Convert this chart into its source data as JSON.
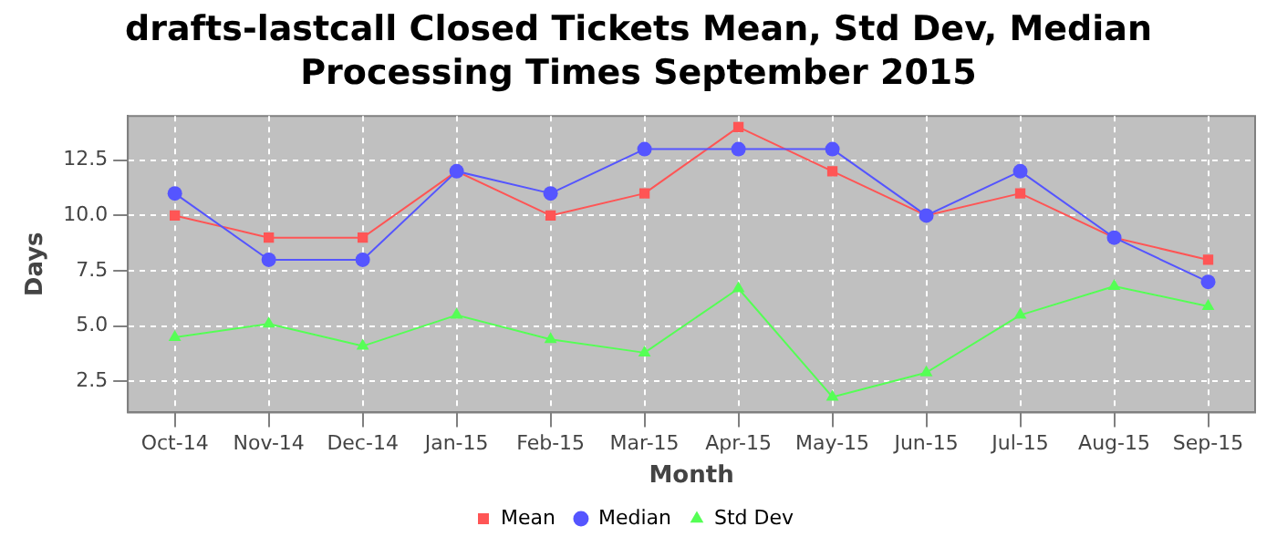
{
  "chart_data": {
    "type": "line",
    "title": "drafts-lastcall Closed Tickets Mean, Std Dev, Median Processing Times September 2015",
    "xlabel": "Month",
    "ylabel": "Days",
    "categories": [
      "Oct-14",
      "Nov-14",
      "Dec-14",
      "Jan-15",
      "Feb-15",
      "Mar-15",
      "Apr-15",
      "May-15",
      "Jun-15",
      "Jul-15",
      "Aug-15",
      "Sep-15"
    ],
    "series": [
      {
        "name": "Mean",
        "color": "#ff5555",
        "marker": "square",
        "values": [
          10,
          9,
          9,
          12,
          10,
          11,
          14,
          12,
          10,
          11,
          9,
          8
        ]
      },
      {
        "name": "Median",
        "color": "#5555ff",
        "marker": "circle",
        "values": [
          11,
          8,
          8,
          12,
          11,
          13,
          13,
          13,
          10,
          12,
          9,
          7
        ]
      },
      {
        "name": "Std Dev",
        "color": "#55ff55",
        "marker": "triangle",
        "values": [
          4.5,
          5.1,
          4.1,
          5.5,
          4.4,
          3.8,
          6.7,
          1.8,
          2.9,
          5.5,
          6.8,
          5.9
        ]
      }
    ],
    "ylim": [
      1.1,
      14.5
    ],
    "yticks": [
      {
        "value": 2.5,
        "label": "2.5"
      },
      {
        "value": 5,
        "label": "5.0"
      },
      {
        "value": 7.5,
        "label": "7.5"
      },
      {
        "value": 10,
        "label": "10.0"
      },
      {
        "value": 12.5,
        "label": "12.5"
      }
    ],
    "grid": true,
    "legend": "bottom",
    "line_style": "solid"
  }
}
